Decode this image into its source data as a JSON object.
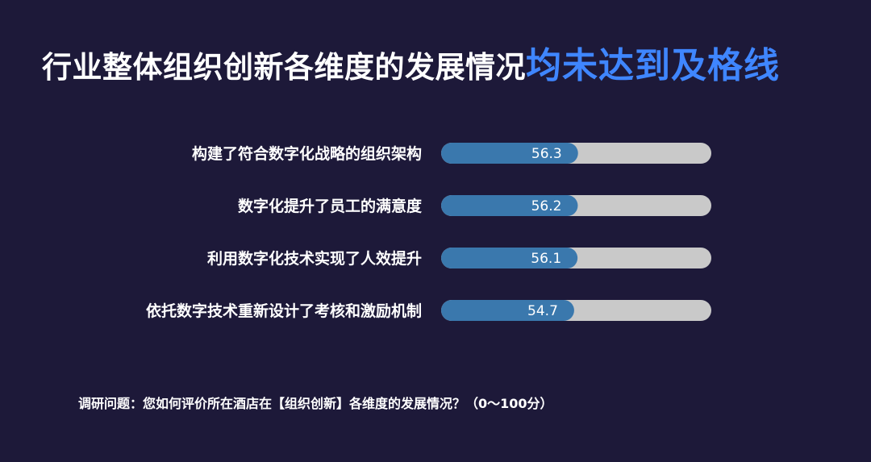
{
  "header": {
    "title_main": "行业整体组织创新各维度的发展情况",
    "title_highlight": "均未达到及格线"
  },
  "footnote": "调研问题：您如何评价所在酒店在【组织创新】各维度的发展情况？（0～100分）",
  "colors": {
    "background": "#1d1939",
    "bar_fill": "#3a78ad",
    "bar_track": "#c9c9c9",
    "highlight": "#3f86ff"
  },
  "chart_data": {
    "type": "bar",
    "orientation": "horizontal",
    "categories": [
      "构建了符合数字化战略的组织架构",
      "数字化提升了员工的满意度",
      "利用数字化技术实现了人效提升",
      "依托数字技术重新设计了考核和激励机制"
    ],
    "values": [
      56.3,
      56.2,
      56.1,
      54.7
    ],
    "value_labels": [
      "56.3",
      "56.2",
      "56.1",
      "54.7"
    ],
    "xlim": [
      0,
      100
    ],
    "grid": false,
    "legend": "none",
    "data_labels": true
  }
}
